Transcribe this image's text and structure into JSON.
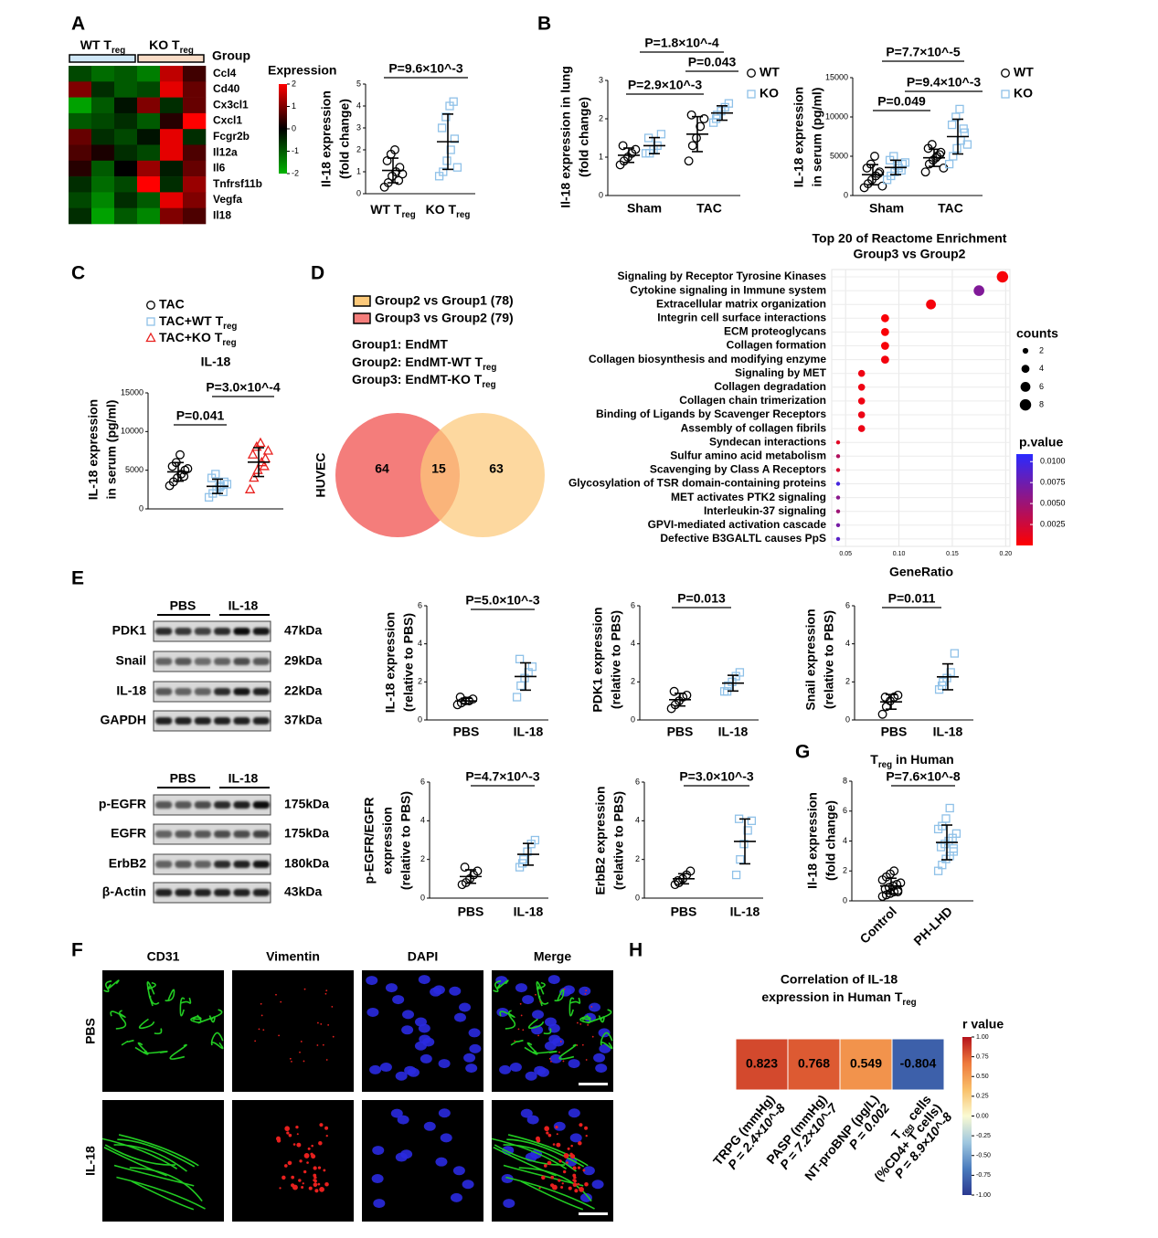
{
  "panel_labels": [
    "A",
    "B",
    "C",
    "D",
    "E",
    "F",
    "G",
    "H"
  ],
  "chart_data": [
    {
      "type": "heatmap",
      "groups": [
        [
          "WT T",
          {
            "sub": "reg"
          }
        ],
        [
          "KO T",
          {
            "sub": "reg"
          }
        ]
      ],
      "group_title": "Group",
      "rows": [
        "Ccl4",
        "Cd40",
        "Cx3cl1",
        "Cxcl1",
        "Fcgr2b",
        "Il12a",
        "Il6",
        "Tnfrsf11b",
        "Vegfa",
        "Il18"
      ],
      "values": [
        [
          -0.8,
          -1.2,
          -1,
          -1.4,
          1.5,
          0.5
        ],
        [
          1,
          -0.5,
          -1,
          -0.8,
          1.8,
          0.8
        ],
        [
          -1.8,
          -1,
          -0.2,
          1,
          -0.5,
          0.8
        ],
        [
          -1,
          -0.8,
          -0.5,
          -1,
          0.3,
          2
        ],
        [
          0.8,
          -0.5,
          -0.8,
          -0.2,
          1.8,
          -0.5
        ],
        [
          0.6,
          0.2,
          -0.5,
          -0.8,
          1.8,
          0.6
        ],
        [
          0.3,
          -1,
          0,
          1.2,
          -0.3,
          0.8
        ],
        [
          -0.5,
          -1.2,
          -0.8,
          2,
          -0.5,
          1.2
        ],
        [
          -0.8,
          -1.5,
          -0.5,
          -1,
          1.8,
          1
        ],
        [
          -0.5,
          -1.8,
          -1,
          -1.5,
          1,
          0.6
        ]
      ],
      "legend_title": "Expression",
      "zlim": [
        -2,
        2
      ],
      "zticks": [
        2,
        1,
        0,
        -1,
        -2
      ],
      "colors": [
        "#00b400",
        "#000000",
        "#ff0000"
      ]
    },
    {
      "type": "dotplot",
      "ylabel": [
        "Il-18 expression",
        "(fold change)"
      ],
      "categories": [
        [
          "WT T",
          {
            "sub": "reg"
          }
        ],
        [
          "KO T",
          {
            "sub": "reg"
          }
        ]
      ],
      "ylim": [
        0,
        5
      ],
      "yticks": [
        0,
        1,
        2,
        3,
        4,
        5
      ],
      "series": [
        {
          "marker": "circle",
          "color": "#000000",
          "values": [
            [
              0.3,
              0.5,
              0.8,
              1.0,
              1.2,
              1.5,
              1.8,
              2.0,
              0.6,
              0.9
            ],
            null
          ]
        },
        {
          "marker": "square",
          "color": "#8fc1e8",
          "values": [
            null,
            [
              0.8,
              1.0,
              1.5,
              2.0,
              2.5,
              3.0,
              3.5,
              4.0,
              4.2,
              1.2
            ]
          ]
        }
      ],
      "annotations": [
        "P=9.6×10^-3"
      ]
    },
    {
      "type": "dotplot",
      "ylabel": [
        "Il-18 expression in lung",
        "(fold change)"
      ],
      "categories": [
        "Sham",
        "TAC"
      ],
      "ylim": [
        0,
        3
      ],
      "yticks": [
        0,
        1,
        2,
        3
      ],
      "series": [
        {
          "name": "WT",
          "marker": "circle",
          "color": "#000000",
          "values": [
            [
              0.8,
              0.9,
              1.0,
              1.1,
              1.2,
              1.3
            ],
            [
              0.9,
              1.3,
              1.5,
              1.8,
              2.0,
              2.1
            ]
          ]
        },
        {
          "name": "KO",
          "marker": "square",
          "color": "#8fc1e8",
          "values": [
            [
              1.1,
              1.1,
              1.2,
              1.3,
              1.6,
              1.5
            ],
            [
              1.9,
              2.1,
              2.2,
              2.3,
              2.4,
              2.0
            ]
          ]
        }
      ],
      "annotations": [
        "P=1.8×10^-4",
        "P=0.043",
        "P=2.9×10^-3"
      ]
    },
    {
      "type": "dotplot",
      "ylabel": [
        "IL-18 expression",
        "in serum (pg/ml)"
      ],
      "categories": [
        "Sham",
        "TAC"
      ],
      "ylim": [
        0,
        15000
      ],
      "yticks": [
        0,
        5000,
        10000,
        15000
      ],
      "series": [
        {
          "name": "WT",
          "marker": "circle",
          "color": "#000000",
          "values": [
            [
              1000,
              1500,
              2000,
              2500,
              3000,
              3500,
              4000,
              5000,
              2800,
              1200
            ],
            [
              3000,
              4000,
              4500,
              5000,
              5500,
              6000,
              6500,
              4800,
              5200,
              3500
            ]
          ]
        },
        {
          "name": "KO",
          "marker": "square",
          "color": "#8fc1e8",
          "values": [
            [
              2000,
              2500,
              3000,
              3500,
              4000,
              4500,
              5000,
              3800,
              3200,
              4200
            ],
            [
              4000,
              5000,
              6000,
              7000,
              8000,
              9000,
              10000,
              11000,
              8500,
              6500
            ]
          ]
        }
      ],
      "annotations": [
        "P=7.7×10^-5",
        "P=9.4×10^-3",
        "P=0.049"
      ]
    },
    {
      "type": "dotplot",
      "title": "IL-18",
      "ylabel": [
        "IL-18 expression",
        "in serum (pg/ml)"
      ],
      "ylim": [
        0,
        15000
      ],
      "yticks": [
        0,
        5000,
        10000,
        15000
      ],
      "series": [
        {
          "name": "TAC",
          "marker": "circle",
          "color": "#000000",
          "values": [
            [
              3000,
              3500,
              4000,
              4500,
              5000,
              5500,
              6000,
              7000,
              4200,
              5200
            ]
          ]
        },
        {
          "name": [
            "TAC+WT T",
            {
              "sub": "reg"
            }
          ],
          "marker": "square",
          "color": "#8fc1e8",
          "values": [
            [
              1500,
              2000,
              2500,
              3000,
              3500,
              4000,
              4500,
              2800,
              2200,
              3200
            ]
          ]
        },
        {
          "name": [
            "TAC+KO T",
            {
              "sub": "reg"
            }
          ],
          "marker": "triangle",
          "color": "#e8201e",
          "values": [
            [
              2500,
              4000,
              5000,
              6000,
              6500,
              7000,
              8000,
              8500,
              5500,
              7500
            ]
          ]
        }
      ],
      "annotations": [
        "P=0.041",
        "P=3.0×10^-4"
      ]
    },
    {
      "type": "venn",
      "legend": [
        "Group2  vs Group1 (78)",
        "Group3  vs Group2 (79)"
      ],
      "colors": [
        "#fcc97a",
        "#f47d7b"
      ],
      "notes": [
        "Group1: EndMT",
        [
          "Group2: EndMT-WT T",
          {
            "sub": "reg"
          }
        ],
        [
          "Group3: EndMT-KO T",
          {
            "sub": "reg"
          }
        ]
      ],
      "side_label": "HUVEC",
      "values": [
        64,
        15,
        63
      ]
    },
    {
      "type": "bubble",
      "title": [
        "Top 20 of Reactome Enrichment",
        "Group3  vs Group2"
      ],
      "categories": [
        "Signaling by Receptor Tyrosine Kinases",
        "Cytokine signaling in Immune system",
        "Extracellular matrix organization",
        "Integrin cell surface interactions",
        "ECM proteoglycans",
        "Collagen formation",
        "Collagen biosynthesis and modifying enzyme",
        "Signaling by MET",
        "Collagen degradation",
        "Collagen chain trimerization",
        "Binding of Ligands by Scavenger Receptors",
        "Assembly of collagen fibrils",
        "Syndecan interactions",
        "Sulfur amino acid metabolism",
        "Scavenging by Class A Receptors",
        "Glycosylation of TSR domain-containing proteins",
        "MET activates PTK2 signaling",
        "Interleukin-37 signaling",
        "GPVI-mediated activation cascade",
        "Defective B3GALTL causes PpS"
      ],
      "values": [
        0.197,
        0.175,
        0.13,
        0.087,
        0.087,
        0.087,
        0.087,
        0.065,
        0.065,
        0.065,
        0.065,
        0.065,
        0.043,
        0.043,
        0.043,
        0.043,
        0.043,
        0.043,
        0.043,
        0.043
      ],
      "sizes": [
        8,
        7,
        6,
        4,
        4,
        4,
        4,
        3,
        3,
        3,
        3,
        3,
        1,
        1,
        1,
        1,
        1,
        1,
        1,
        1
      ],
      "p_values": [
        0.0004,
        0.0065,
        0.0005,
        0.0003,
        0.0003,
        0.0004,
        0.0006,
        0.0008,
        0.0008,
        0.0008,
        0.0009,
        0.0009,
        0.0015,
        0.004,
        0.002,
        0.0095,
        0.006,
        0.005,
        0.007,
        0.0085
      ],
      "xlabel": "GeneRatio",
      "xlim": [
        0.037,
        0.204
      ],
      "xticks": [
        {
          "value": 0.05,
          "label": "0.05"
        },
        {
          "value": 0.1,
          "label": "0.10"
        },
        {
          "value": 0.15,
          "label": "0.15"
        },
        {
          "value": 0.2,
          "label": "0.20"
        }
      ],
      "grid": true,
      "size_title": "counts",
      "size_ticks": [
        2,
        4,
        6,
        8
      ],
      "color_title": "p.value",
      "color_lim": [
        0,
        0.0109
      ],
      "colors": [
        "#ff0000",
        "#2a2aff"
      ],
      "color_ticks": [
        {
          "value": 0.01,
          "label": "0.0100"
        },
        {
          "value": 0.0075,
          "label": "0.0075"
        },
        {
          "value": 0.005,
          "label": "0.0050"
        },
        {
          "value": 0.0025,
          "label": "0.0025"
        }
      ]
    },
    {
      "type": "blot",
      "lanes": [
        "PBS",
        "IL-18"
      ],
      "proteins": [
        "PDK1",
        "Snail",
        "IL-18",
        "GAPDH"
      ],
      "sizes": [
        "47kDa",
        "29kDa",
        "22kDa",
        "37kDa"
      ]
    },
    {
      "type": "dotplot",
      "ylabel": [
        "IL-18 expression",
        "(relative to PBS)"
      ],
      "categories": [
        "PBS",
        "IL-18"
      ],
      "ylim": [
        0,
        6
      ],
      "yticks": [
        0,
        2,
        4,
        6
      ],
      "series": [
        {
          "marker": "circle",
          "color": "#000000",
          "values": [
            [
              0.8,
              0.9,
              1.0,
              1.0,
              1.1,
              1.2
            ],
            null
          ]
        },
        {
          "marker": "square",
          "color": "#8fc1e8",
          "values": [
            null,
            [
              1.2,
              1.8,
              2.2,
              2.5,
              2.8,
              3.2
            ]
          ]
        }
      ],
      "annotations": [
        "P=5.0×10^-3"
      ]
    },
    {
      "type": "dotplot",
      "ylabel": [
        "PDK1 expression",
        "(relative to PBS)"
      ],
      "categories": [
        "PBS",
        "IL-18"
      ],
      "ylim": [
        0,
        6
      ],
      "yticks": [
        0,
        2,
        4,
        6
      ],
      "series": [
        {
          "marker": "circle",
          "color": "#000000",
          "values": [
            [
              0.6,
              0.8,
              1.0,
              1.2,
              1.3,
              1.5
            ],
            null
          ]
        },
        {
          "marker": "square",
          "color": "#8fc1e8",
          "values": [
            null,
            [
              1.5,
              1.8,
              2.0,
              2.3,
              2.5,
              1.5
            ]
          ]
        }
      ],
      "annotations": [
        "P=0.013"
      ]
    },
    {
      "type": "dotplot",
      "ylabel": [
        "Snail expression",
        "(relative to PBS)"
      ],
      "categories": [
        "PBS",
        "IL-18"
      ],
      "ylim": [
        0,
        6
      ],
      "yticks": [
        0,
        2,
        4,
        6
      ],
      "series": [
        {
          "marker": "circle",
          "color": "#000000",
          "values": [
            [
              0.3,
              0.7,
              1.0,
              1.2,
              1.3,
              1.2
            ],
            null
          ]
        },
        {
          "marker": "square",
          "color": "#8fc1e8",
          "values": [
            null,
            [
              1.6,
              2.0,
              2.2,
              2.5,
              3.5,
              1.8
            ]
          ]
        }
      ],
      "annotations": [
        "P=0.011"
      ]
    },
    {
      "type": "blot",
      "lanes": [
        "PBS",
        "IL-18"
      ],
      "proteins": [
        "p-EGFR",
        "EGFR",
        "ErbB2",
        "β-Actin"
      ],
      "sizes": [
        "175kDa",
        "175kDa",
        "180kDa",
        "43kDa"
      ]
    },
    {
      "type": "dotplot",
      "ylabel": [
        "p-EGFR/EGFR",
        "expression",
        "(relative to PBS)"
      ],
      "categories": [
        "PBS",
        "IL-18"
      ],
      "ylim": [
        0,
        6
      ],
      "yticks": [
        0,
        2,
        4,
        6
      ],
      "series": [
        {
          "marker": "circle",
          "color": "#000000",
          "values": [
            [
              0.7,
              0.8,
              1.0,
              1.2,
              1.4,
              1.6
            ],
            null
          ]
        },
        {
          "marker": "square",
          "color": "#8fc1e8",
          "values": [
            null,
            [
              1.6,
              2.0,
              2.4,
              2.8,
              3.0,
              1.8
            ]
          ]
        }
      ],
      "annotations": [
        "P=4.7×10^-3"
      ]
    },
    {
      "type": "dotplot",
      "ylabel": [
        "ErbB2 expression",
        "(relative to PBS)"
      ],
      "categories": [
        "PBS",
        "IL-18"
      ],
      "ylim": [
        0,
        6
      ],
      "yticks": [
        0,
        2,
        4,
        6
      ],
      "series": [
        {
          "marker": "circle",
          "color": "#000000",
          "values": [
            [
              0.7,
              0.8,
              1.0,
              1.2,
              1.4,
              0.9
            ],
            null
          ]
        },
        {
          "marker": "square",
          "color": "#8fc1e8",
          "values": [
            null,
            [
              1.2,
              2.0,
              2.8,
              3.5,
              4.0,
              4.1
            ]
          ]
        }
      ],
      "annotations": [
        "P=3.0×10^-3"
      ]
    },
    {
      "type": "dotplot",
      "title": [
        "T",
        {
          "sub": "reg"
        },
        " in Human"
      ],
      "ylabel": [
        "Il-18 expression",
        "(fold change)"
      ],
      "categories": [
        "Control",
        "PH-LHD"
      ],
      "ylim": [
        0,
        8
      ],
      "yticks": [
        0,
        2,
        4,
        6,
        8
      ],
      "series": [
        {
          "marker": "circle",
          "color": "#000000",
          "values": [
            [
              0.3,
              0.4,
              0.5,
              0.6,
              0.7,
              0.8,
              0.9,
              1.0,
              1.1,
              1.2,
              1.4,
              1.6,
              1.8,
              2.0,
              0.6
            ],
            null
          ]
        },
        {
          "marker": "square",
          "color": "#8fc1e8",
          "values": [
            null,
            [
              2.0,
              2.4,
              2.8,
              3.0,
              3.3,
              3.6,
              3.8,
              4.0,
              4.2,
              4.5,
              4.8,
              5.0,
              5.5,
              6.2,
              3.5
            ]
          ]
        }
      ],
      "annotations": [
        "P=7.6×10^-8"
      ]
    },
    {
      "type": "image",
      "channels": [
        "CD31",
        "Vimentin",
        "DAPI",
        "Merge"
      ],
      "channel_colors": [
        "#22cc22",
        "#e8201e",
        "#2a2ae0",
        "#000000"
      ],
      "conditions": [
        "PBS",
        "IL-18"
      ]
    },
    {
      "type": "corr_heatmap",
      "title": [
        "Correlation of IL-18",
        [
          "expression in Human T",
          {
            "sub": "reg"
          }
        ]
      ],
      "labels": [
        [
          "TRPG (mmHg)",
          "P = 2.4×10^-8"
        ],
        [
          "PASP (mmHg)",
          "P = 7.2×10^-7"
        ],
        [
          "NT-proBNP (pg/L)",
          "P = 0.002"
        ],
        [
          [
            "T",
            {
              "sub": "reg"
            },
            " cells"
          ],
          "(%CD4+ T cells)",
          "P = 8.9×10^-8"
        ]
      ],
      "values": [
        0.823,
        0.768,
        0.549,
        -0.804
      ],
      "legend_title": "r value",
      "zlim": [
        -1,
        1
      ],
      "zticks": [
        {
          "value": 1,
          "label": "1.00"
        },
        {
          "value": 0.75,
          "label": "0.75"
        },
        {
          "value": 0.5,
          "label": "0.50"
        },
        {
          "value": 0.25,
          "label": "0.25"
        },
        {
          "value": 0,
          "label": "0.00"
        },
        {
          "value": -0.25,
          "label": "-0.25"
        },
        {
          "value": -0.5,
          "label": "-0.50"
        },
        {
          "value": -0.75,
          "label": "-0.75"
        },
        {
          "value": -1,
          "label": "-1.00"
        }
      ],
      "colors": [
        "#2b3990",
        "#4a7bbd",
        "#9fc7df",
        "#fafad2",
        "#f9c06a",
        "#ee7a3c",
        "#b5121b"
      ]
    }
  ]
}
